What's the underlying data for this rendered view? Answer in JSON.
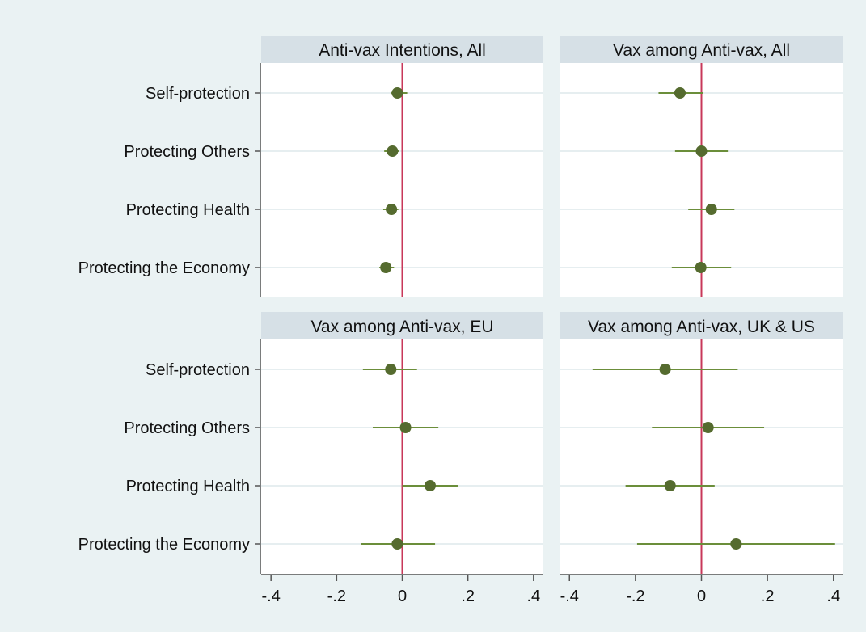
{
  "chart_data": {
    "type": "scatter",
    "categories": [
      "Self-protection",
      "Protecting Others",
      "Protecting Health",
      "Protecting the Economy"
    ],
    "x_ticks": [
      -0.4,
      -0.2,
      0,
      0.2,
      0.4
    ],
    "x_tick_labels": [
      "-.4",
      "-.2",
      "0",
      ".2",
      ".4"
    ],
    "xlim": [
      -0.43,
      0.43
    ],
    "reference_line_x": 0,
    "colors": {
      "marker": "#556b2f",
      "ci": "#6b8e3a",
      "refline": "#c8385a",
      "title_bg": "#d6e0e6"
    },
    "panels": [
      {
        "title": "Anti-vax Intentions, All",
        "points": [
          {
            "category": "Self-protection",
            "estimate": -0.015,
            "ci": [
              -0.035,
              0.015
            ]
          },
          {
            "category": "Protecting Others",
            "estimate": -0.03,
            "ci": [
              -0.055,
              -0.01
            ]
          },
          {
            "category": "Protecting Health",
            "estimate": -0.033,
            "ci": [
              -0.058,
              -0.012
            ]
          },
          {
            "category": "Protecting the Economy",
            "estimate": -0.05,
            "ci": [
              -0.07,
              -0.025
            ]
          }
        ]
      },
      {
        "title": "Vax among Anti-vax, All",
        "points": [
          {
            "category": "Self-protection",
            "estimate": -0.065,
            "ci": [
              -0.13,
              0.005
            ]
          },
          {
            "category": "Protecting Others",
            "estimate": 0.0,
            "ci": [
              -0.08,
              0.08
            ]
          },
          {
            "category": "Protecting Health",
            "estimate": 0.03,
            "ci": [
              -0.04,
              0.1
            ]
          },
          {
            "category": "Protecting the Economy",
            "estimate": -0.002,
            "ci": [
              -0.09,
              0.09
            ]
          }
        ]
      },
      {
        "title": "Vax among Anti-vax, EU",
        "points": [
          {
            "category": "Self-protection",
            "estimate": -0.035,
            "ci": [
              -0.12,
              0.045
            ]
          },
          {
            "category": "Protecting Others",
            "estimate": 0.01,
            "ci": [
              -0.09,
              0.11
            ]
          },
          {
            "category": "Protecting Health",
            "estimate": 0.085,
            "ci": [
              0.0,
              0.17
            ]
          },
          {
            "category": "Protecting the Economy",
            "estimate": -0.015,
            "ci": [
              -0.125,
              0.1
            ]
          }
        ]
      },
      {
        "title": "Vax among Anti-vax, UK & US",
        "points": [
          {
            "category": "Self-protection",
            "estimate": -0.11,
            "ci": [
              -0.33,
              0.11
            ]
          },
          {
            "category": "Protecting Others",
            "estimate": 0.02,
            "ci": [
              -0.15,
              0.19
            ]
          },
          {
            "category": "Protecting Health",
            "estimate": -0.095,
            "ci": [
              -0.23,
              0.04
            ]
          },
          {
            "category": "Protecting the Economy",
            "estimate": 0.105,
            "ci": [
              -0.195,
              0.405
            ]
          }
        ]
      }
    ]
  }
}
